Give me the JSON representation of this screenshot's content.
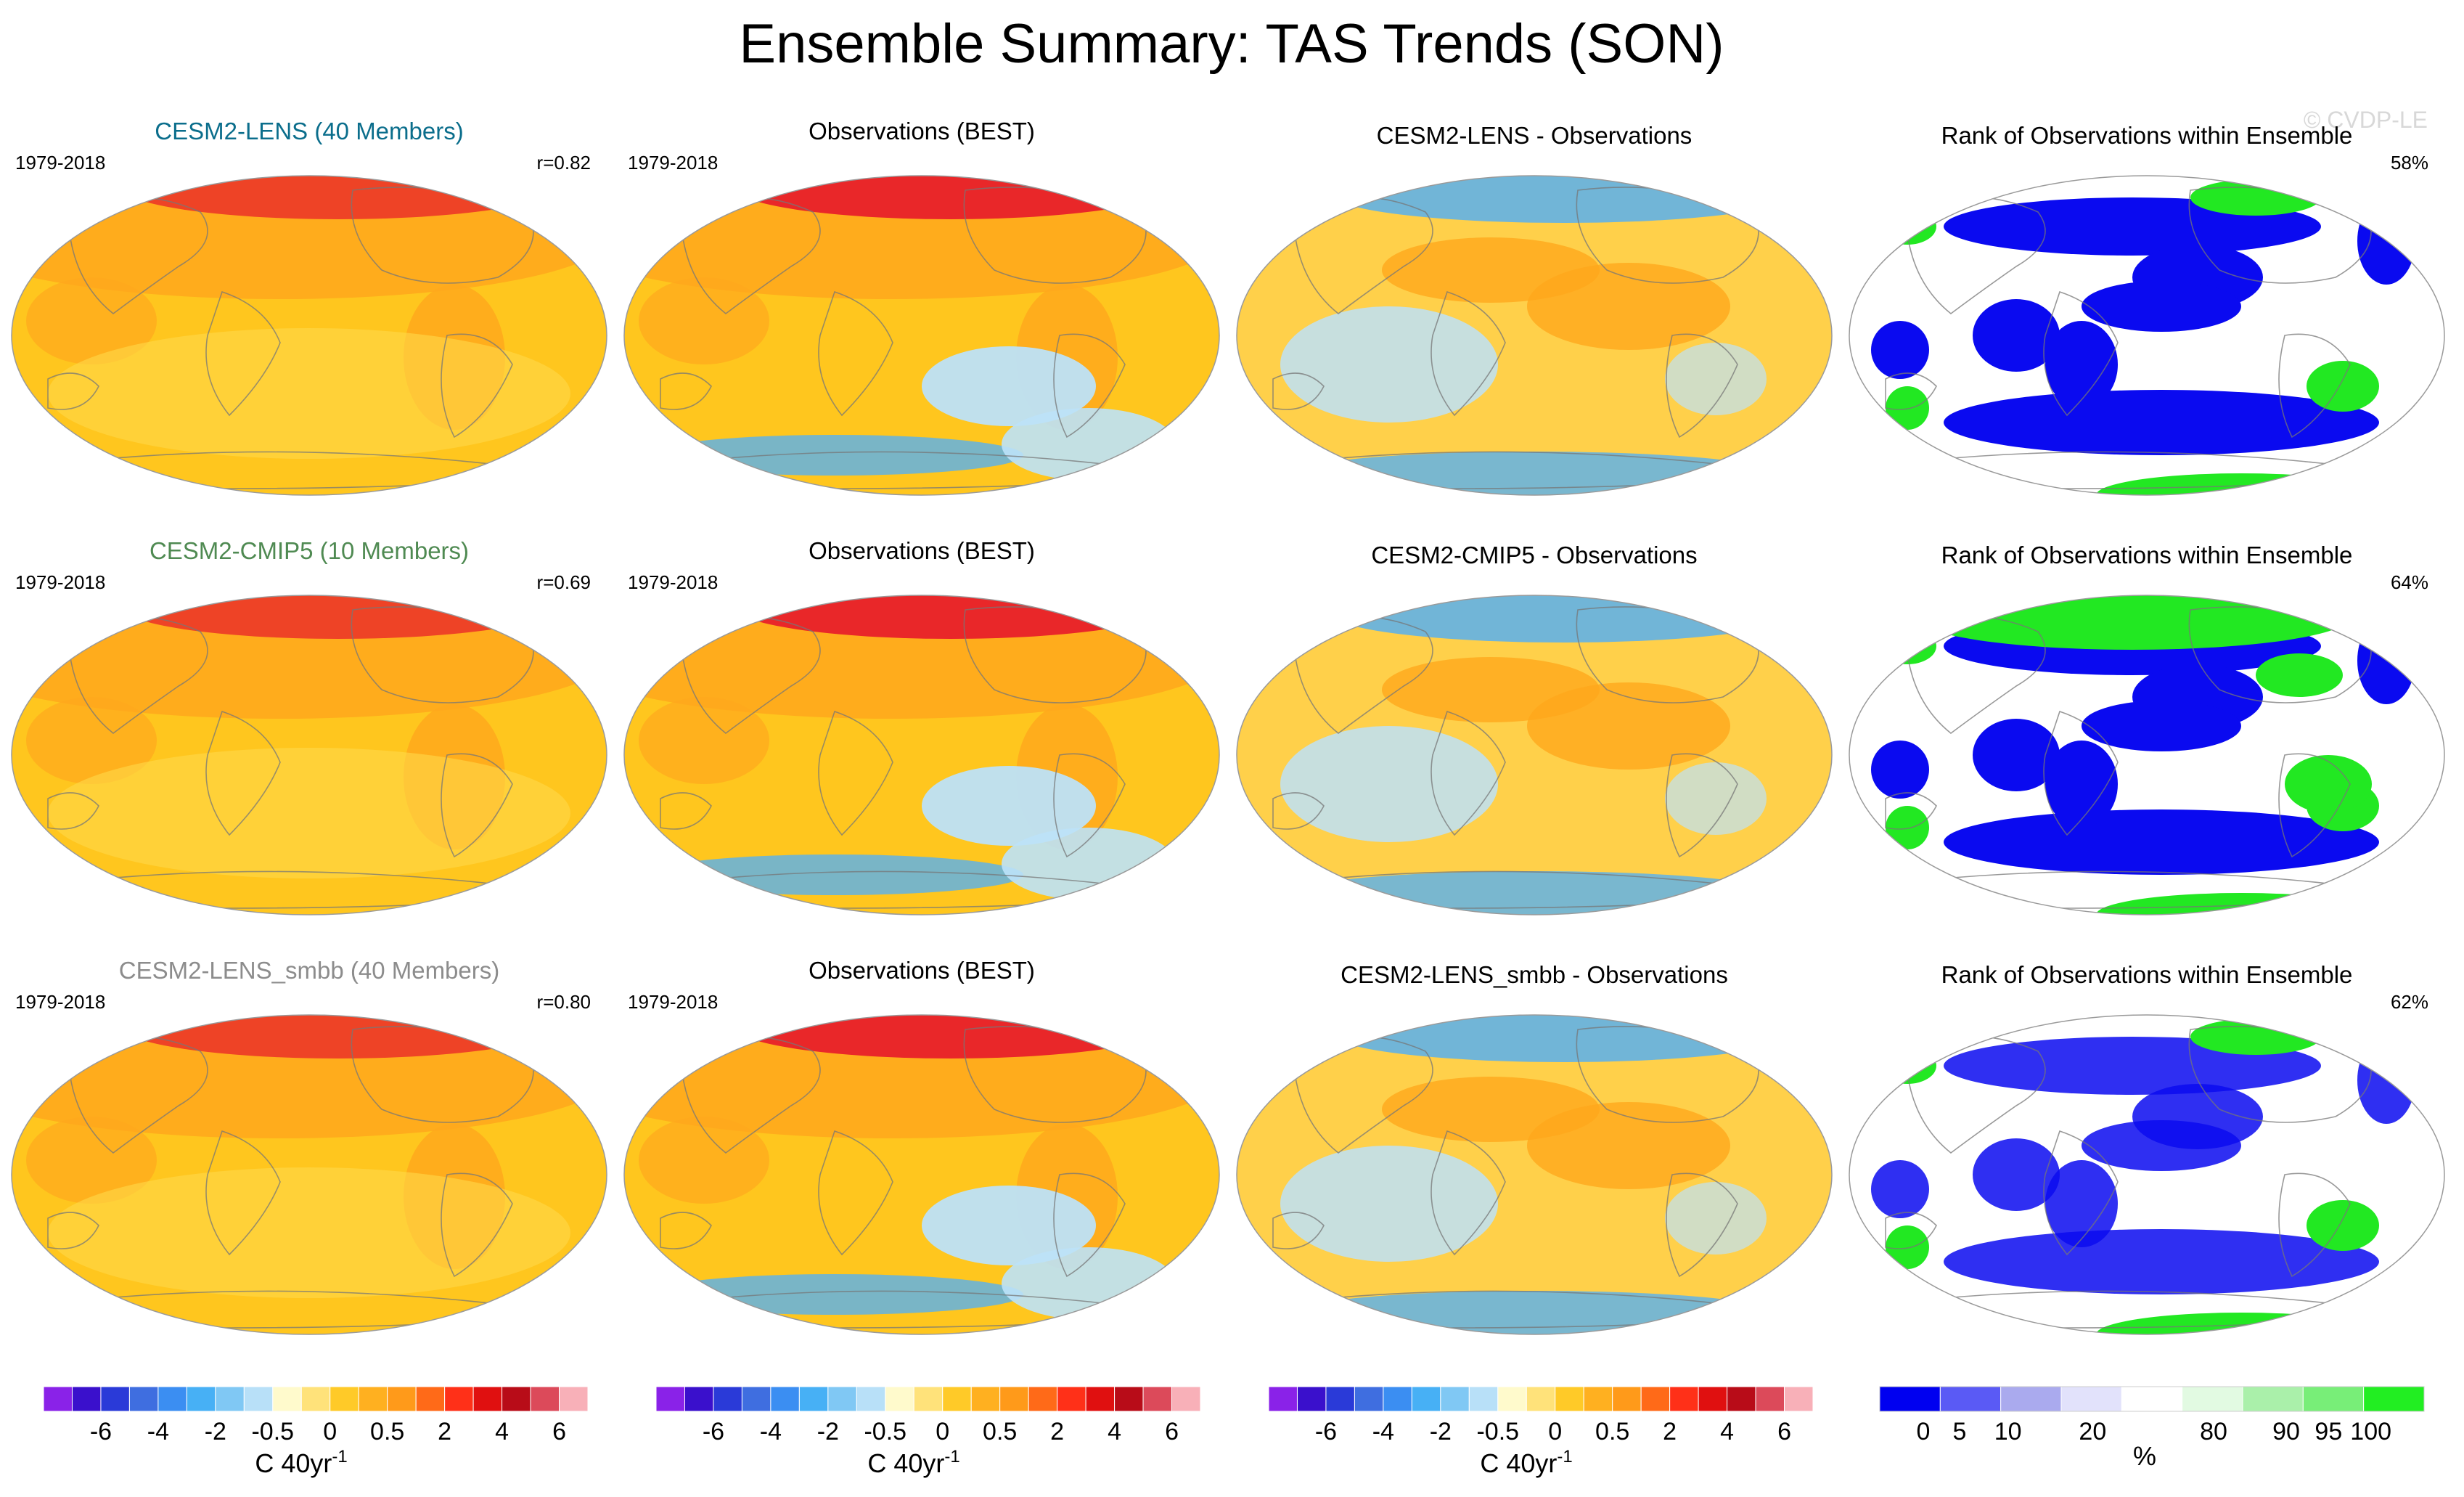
{
  "title": "Ensemble Summary: TAS Trends (SON)",
  "watermark": "© CVDP-LE",
  "period": "1979-2018",
  "colors": {
    "ocean": "#ffc61e",
    "warm": "#ffa81c",
    "hot": "#e8202a",
    "cool": "#bde2f8",
    "cold": "#58b0f0",
    "rank_low": "#0a0af0",
    "rank_high": "#22e822",
    "land_line": "#777777"
  },
  "rows": [
    {
      "model_title": "CESM2-LENS (40 Members)",
      "model_title_color": "#0b6e8c",
      "r_label": "r=0.82",
      "obs_title": "Observations (BEST)",
      "diff_title": "CESM2-LENS - Observations",
      "rank_title": "Rank of Observations within Ensemble",
      "rank_pct": "58%"
    },
    {
      "model_title": "CESM2-CMIP5 (10 Members)",
      "model_title_color": "#4f8a52",
      "r_label": "r=0.69",
      "obs_title": "Observations (BEST)",
      "diff_title": "CESM2-CMIP5 - Observations",
      "rank_title": "Rank of Observations within Ensemble",
      "rank_pct": "64%"
    },
    {
      "model_title": "CESM2-LENS_smbb (40 Members)",
      "model_title_color": "#8c8c8c",
      "r_label": "r=0.80",
      "obs_title": "Observations (BEST)",
      "diff_title": "CESM2-LENS_smbb - Observations",
      "rank_title": "Rank of Observations within Ensemble",
      "rank_pct": "62%"
    }
  ],
  "colorbar_trend": {
    "colors": [
      "#8a22e8",
      "#3a10cc",
      "#2a3ad8",
      "#3f6ee0",
      "#3b8ef2",
      "#47b0f5",
      "#80c8f4",
      "#b8e0f8",
      "#fffacc",
      "#ffe27a",
      "#ffca28",
      "#ffb020",
      "#ff9a1a",
      "#ff6a18",
      "#ff3018",
      "#e01010",
      "#b80c18",
      "#dc4a5a",
      "#f8b0b8"
    ],
    "labels": [
      "-6",
      "-4",
      "-2",
      "-0.5",
      "0",
      "0.5",
      "2",
      "4",
      "6"
    ],
    "unit": "C 40yr",
    "unit_sup": "-1"
  },
  "colorbar_rank": {
    "colors": [
      "#0000f0",
      "#5a5af5",
      "#aaaaee",
      "#e2e2fb",
      "#ffffff",
      "#e2fae2",
      "#aaf0aa",
      "#78ee78",
      "#22ee22"
    ],
    "labels": [
      "0",
      "5",
      "10",
      "20",
      "80",
      "90",
      "95",
      "100"
    ],
    "unit": "%"
  },
  "chart_data": {
    "type": "heatmap",
    "layout": "3 rows x 4 columns of Hammer-Aitoff global maps",
    "variable": "TAS (surface air temperature) linear trend, SON season",
    "units": "C 40yr-1",
    "panel_columns": [
      "Ensemble mean trend",
      "Observations (BEST) trend",
      "Ensemble mean minus observations",
      "Rank of observations within ensemble"
    ],
    "trend_levels": [
      -6,
      -4,
      -2,
      -0.5,
      0,
      0.5,
      2,
      4,
      6
    ],
    "rank_levels_percent": [
      0,
      5,
      10,
      20,
      80,
      90,
      95,
      100
    ],
    "pattern_correlations": [
      0.82,
      0.69,
      0.8
    ],
    "rank_percent_in_range": [
      58,
      64,
      62
    ]
  }
}
